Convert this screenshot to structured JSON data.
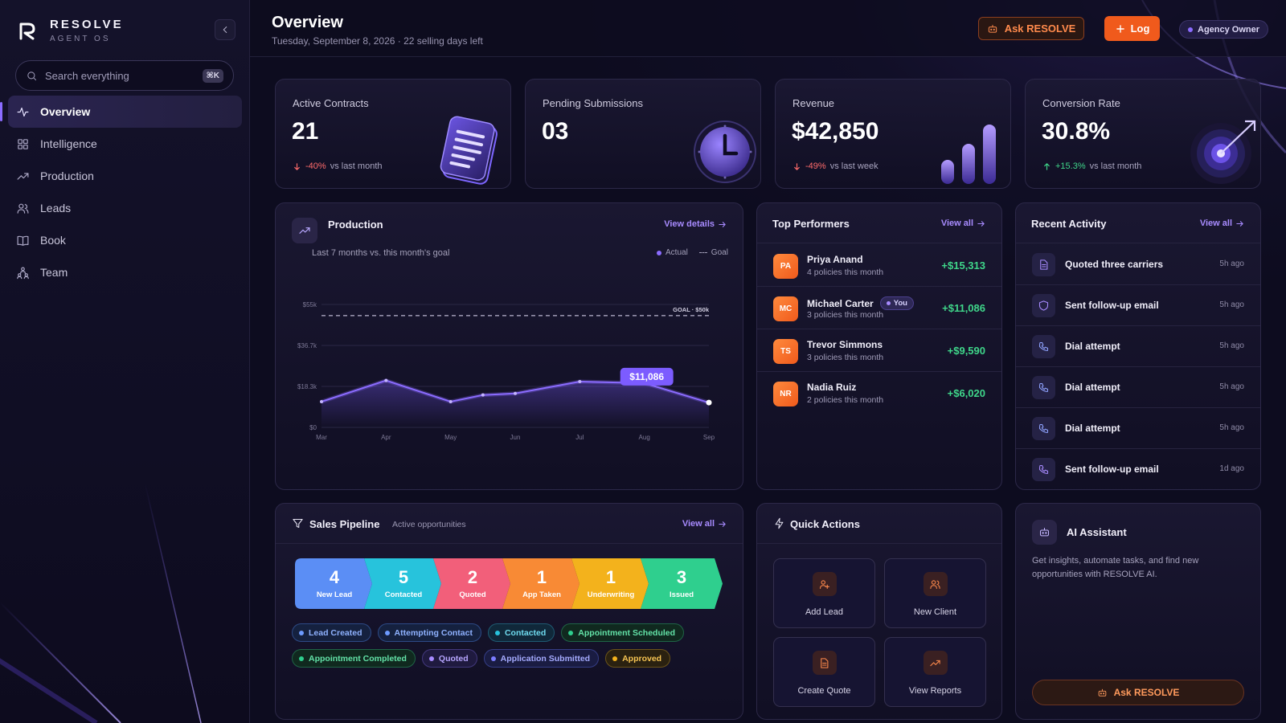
{
  "brand": {
    "name": "RESOLVE",
    "sub": "AGENT OS"
  },
  "search": {
    "placeholder": "Search everything",
    "shortcut": "⌘K"
  },
  "nav": [
    {
      "label": "Overview",
      "icon": "pulse-icon",
      "active": true
    },
    {
      "label": "Intelligence",
      "icon": "grid-icon"
    },
    {
      "label": "Production",
      "icon": "trend-icon"
    },
    {
      "label": "Leads",
      "icon": "users-icon"
    },
    {
      "label": "Book",
      "icon": "book-icon"
    },
    {
      "label": "Team",
      "icon": "team-icon"
    }
  ],
  "header": {
    "title": "Overview",
    "subtitle": "Tuesday, September 8, 2026 · 22 selling days left",
    "ask_label": "Ask RESOLVE",
    "log_label": "Log",
    "role": "Agency Owner"
  },
  "kpis": [
    {
      "label": "Active Contracts",
      "value": "21",
      "delta": "-40%",
      "delta_dir": "down",
      "period": "vs last month"
    },
    {
      "label": "Pending Submissions",
      "value": "03",
      "delta": "",
      "period": ""
    },
    {
      "label": "Revenue",
      "value": "$42,850",
      "delta": "-49%",
      "delta_dir": "down",
      "period": "vs last week"
    },
    {
      "label": "Conversion Rate",
      "value": "30.8%",
      "delta": "+15.3%",
      "delta_dir": "up",
      "period": "vs last month"
    }
  ],
  "production": {
    "title": "Production",
    "view_label": "View details",
    "subtitle": "Last 7 months vs. this month's goal",
    "legend_actual": "Actual",
    "legend_goal": "Goal",
    "goal_label": "GOAL · $50k",
    "callout": "$11,086"
  },
  "chart_data": {
    "type": "line",
    "x": [
      "Mar",
      "",
      "Apr",
      "",
      "May",
      "",
      "Jun",
      "",
      "Jul",
      "",
      "Aug",
      "",
      "Sep"
    ],
    "x_tick_labels": [
      "Mar",
      "Apr",
      "May",
      "Jun",
      "Jul",
      "Aug",
      "Sep"
    ],
    "series": [
      {
        "name": "Actual",
        "values": [
          11500,
          null,
          21000,
          null,
          11500,
          14500,
          15200,
          null,
          20500,
          null,
          19800,
          null,
          11086
        ]
      }
    ],
    "goal": 50000,
    "y_ticks": [
      "$0",
      "$18.3k",
      "$36.7k",
      "$55k"
    ],
    "ylim": [
      0,
      55000
    ]
  },
  "performers": {
    "title": "Top Performers",
    "view_label": "View all",
    "items": [
      {
        "initials": "PA",
        "name": "Priya Anand",
        "meta": "4 policies this month",
        "amount": "+$15,313"
      },
      {
        "initials": "MC",
        "name": "Michael Carter",
        "badge": "You",
        "meta": "3 policies this month",
        "amount": "+$11,086"
      },
      {
        "initials": "TS",
        "name": "Trevor Simmons",
        "meta": "3 policies this month",
        "amount": "+$9,590"
      },
      {
        "initials": "NR",
        "name": "Nadia Ruiz",
        "meta": "2 policies this month",
        "amount": "+$6,020"
      }
    ]
  },
  "activity": {
    "title": "Recent Activity",
    "view_label": "View all",
    "items": [
      {
        "icon": "document-icon",
        "text": "Quoted three carriers",
        "time": "5h ago"
      },
      {
        "icon": "shield-icon",
        "text": "Sent follow-up email",
        "time": "5h ago"
      },
      {
        "icon": "phone-icon",
        "text": "Dial attempt",
        "time": "5h ago"
      },
      {
        "icon": "phone-icon",
        "text": "Dial attempt",
        "time": "5h ago"
      },
      {
        "icon": "phone-icon",
        "text": "Dial attempt",
        "time": "5h ago"
      },
      {
        "icon": "phone-icon",
        "text": "Sent follow-up email",
        "time": "1d ago"
      }
    ]
  },
  "pipeline": {
    "title": "Sales Pipeline",
    "subtitle": "Active opportunities",
    "view_label": "View all",
    "stages": [
      {
        "count": "4",
        "label": "New Lead",
        "color": "#5b8ef5"
      },
      {
        "count": "5",
        "label": "Contacted",
        "color": "#27c3dc"
      },
      {
        "count": "2",
        "label": "Quoted",
        "color": "#f25f7a"
      },
      {
        "count": "1",
        "label": "App Taken",
        "color": "#f88a35"
      },
      {
        "count": "1",
        "label": "Underwriting",
        "color": "#f3b21c"
      },
      {
        "count": "3",
        "label": "Issued",
        "color": "#2fcf8e"
      }
    ],
    "chips": [
      {
        "label": "Lead Created",
        "color": "#5b8ef5"
      },
      {
        "label": "Attempting Contact",
        "color": "#5b8ef5"
      },
      {
        "label": "Contacted",
        "color": "#27c3dc"
      },
      {
        "label": "Appointment Scheduled",
        "color": "#2fcf8e"
      },
      {
        "label": "Appointment Completed",
        "color": "#2fcf8e"
      },
      {
        "label": "Quoted",
        "color": "#8b6cff"
      },
      {
        "label": "Application Submitted",
        "color": "#7b7cff"
      },
      {
        "label": "Approved",
        "color": "#f3b21c"
      }
    ]
  },
  "quick_actions": {
    "title": "Quick Actions",
    "items": [
      {
        "label": "Add Lead",
        "icon": "user-plus-icon"
      },
      {
        "label": "New Client",
        "icon": "users-icon"
      },
      {
        "label": "Create Quote",
        "icon": "document-icon"
      },
      {
        "label": "View Reports",
        "icon": "trend-icon"
      }
    ]
  },
  "assistant": {
    "title": "AI Assistant",
    "description": "Get insights, automate tasks, and find new opportunities with RESOLVE AI.",
    "button_label": "Ask RESOLVE"
  },
  "colors": {
    "accent": "#8b6cff",
    "brand_orange": "#f05a1c",
    "positive": "#3fd68a",
    "negative": "#ff6b6b"
  }
}
